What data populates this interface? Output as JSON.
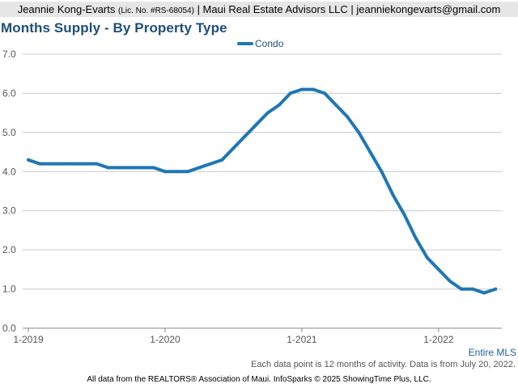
{
  "header": {
    "name": "Jeannie Kong-Evarts",
    "license": "(Lic. No. #RS-68054)",
    "rest": "| Maui Real Estate Advisors LLC | jeanniekongevarts@gmail.com"
  },
  "scope_label": "Entire MLS",
  "note": "Each data point is 12 months of activity. Data is from July 20, 2022.",
  "footer": "All data from the REALTORS® Association of Maui. InfoSparks © 2025 ShowingTime Plus, LLC.",
  "chart_data": {
    "type": "line",
    "title": "Months Supply - By Property Type",
    "legend_position": "top-center",
    "grid": true,
    "ylim": [
      0,
      7
    ],
    "yticks": [
      "0.0",
      "1.0",
      "2.0",
      "3.0",
      "4.0",
      "5.0",
      "6.0",
      "7.0"
    ],
    "xticks": [
      "1-2019",
      "1-2020",
      "1-2021",
      "1-2022"
    ],
    "x": [
      "1-2019",
      "2-2019",
      "3-2019",
      "4-2019",
      "5-2019",
      "6-2019",
      "7-2019",
      "8-2019",
      "9-2019",
      "10-2019",
      "11-2019",
      "12-2019",
      "1-2020",
      "2-2020",
      "3-2020",
      "4-2020",
      "5-2020",
      "6-2020",
      "7-2020",
      "8-2020",
      "9-2020",
      "10-2020",
      "11-2020",
      "12-2020",
      "1-2021",
      "2-2021",
      "3-2021",
      "4-2021",
      "5-2021",
      "6-2021",
      "7-2021",
      "8-2021",
      "9-2021",
      "10-2021",
      "11-2021",
      "12-2021",
      "1-2022",
      "2-2022",
      "3-2022",
      "4-2022",
      "5-2022",
      "6-2022"
    ],
    "series": [
      {
        "name": "Condo",
        "color": "#1f77b4",
        "values": [
          4.3,
          4.2,
          4.2,
          4.2,
          4.2,
          4.2,
          4.2,
          4.1,
          4.1,
          4.1,
          4.1,
          4.1,
          4.0,
          4.0,
          4.0,
          4.1,
          4.2,
          4.3,
          4.6,
          4.9,
          5.2,
          5.5,
          5.7,
          6.0,
          6.1,
          6.1,
          6.0,
          5.7,
          5.4,
          5.0,
          4.5,
          4.0,
          3.4,
          2.9,
          2.3,
          1.8,
          1.5,
          1.2,
          1.0,
          1.0,
          0.9,
          1.0
        ]
      }
    ]
  }
}
